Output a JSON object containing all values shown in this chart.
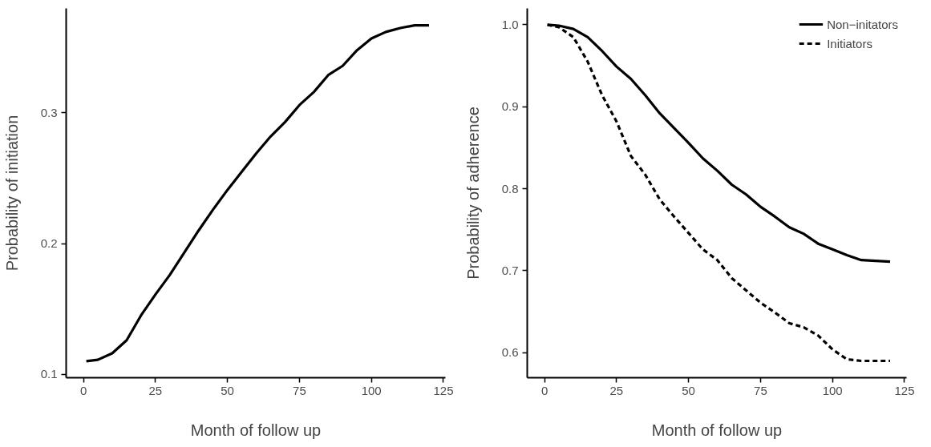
{
  "chart_data": [
    {
      "type": "line",
      "xlabel": "Month of follow up",
      "ylabel": "Probability of initiation",
      "xlim": [
        -6,
        125.7
      ],
      "ylim": [
        0.0973,
        0.38
      ],
      "xticks": [
        0,
        25,
        50,
        75,
        100,
        125
      ],
      "yticks": [
        0.1,
        0.2,
        0.3
      ],
      "grid": false,
      "legend": false,
      "x": [
        1,
        5,
        10,
        15,
        20,
        25,
        30,
        35,
        40,
        45,
        50,
        55,
        60,
        65,
        70,
        75,
        80,
        85,
        90,
        95,
        100,
        105,
        110,
        115,
        120
      ],
      "series": [
        {
          "color": "#000000",
          "line_style": "solid",
          "values": [
            0.11,
            0.111,
            0.116,
            0.126,
            0.145,
            0.161,
            0.176,
            0.193,
            0.21,
            0.226,
            0.241,
            0.255,
            0.269,
            0.282,
            0.293,
            0.306,
            0.316,
            0.329,
            0.336,
            0.348,
            0.357,
            0.362,
            0.365,
            0.367,
            0.367
          ]
        }
      ]
    },
    {
      "type": "line",
      "xlabel": "Month of follow up",
      "ylabel": "Probability of adherence",
      "xlim": [
        -6,
        125.7
      ],
      "ylim": [
        0.5695,
        1.02
      ],
      "xticks": [
        0,
        25,
        50,
        75,
        100,
        125
      ],
      "yticks": [
        0.6,
        0.7,
        0.8,
        0.9,
        {
          "value": 1.0,
          "label": "1.0"
        }
      ],
      "grid": false,
      "legend": "top right",
      "x": [
        1,
        5,
        10,
        15,
        20,
        25,
        30,
        35,
        40,
        45,
        50,
        55,
        60,
        65,
        70,
        75,
        80,
        85,
        90,
        95,
        100,
        105,
        110,
        115,
        120
      ],
      "series": [
        {
          "name": "Non−initators",
          "color": "#000000",
          "line_style": "solid",
          "values": [
            1.0,
            0.999,
            0.995,
            0.985,
            0.968,
            0.949,
            0.934,
            0.914,
            0.892,
            0.874,
            0.856,
            0.837,
            0.822,
            0.805,
            0.793,
            0.778,
            0.766,
            0.753,
            0.745,
            0.733,
            0.726,
            0.719,
            0.713,
            0.712,
            0.711
          ]
        },
        {
          "name": "Initiators",
          "color": "#000000",
          "line_style": "dashed",
          "values": [
            1.0,
            0.997,
            0.985,
            0.955,
            0.914,
            0.882,
            0.84,
            0.817,
            0.787,
            0.766,
            0.746,
            0.726,
            0.713,
            0.691,
            0.676,
            0.661,
            0.649,
            0.636,
            0.631,
            0.621,
            0.604,
            0.592,
            0.59,
            0.59,
            0.59
          ]
        }
      ]
    }
  ]
}
